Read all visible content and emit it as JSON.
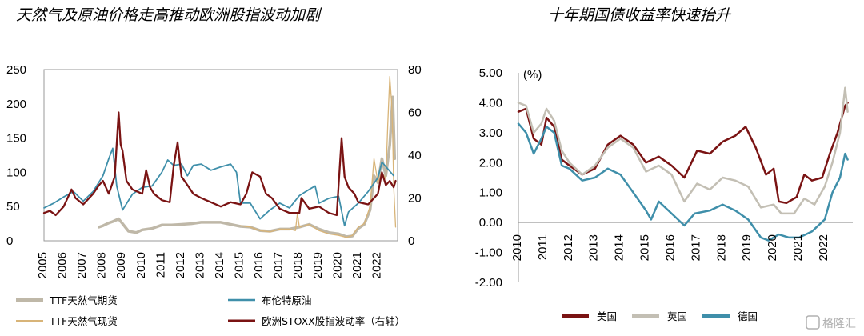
{
  "watermark": "格隆汇",
  "chart_data": [
    {
      "type": "line",
      "title": "天然气及原油价格走高推动欧洲股指波动加剧",
      "x_ticks": [
        "2005",
        "2006",
        "2007",
        "2008",
        "2009",
        "2010",
        "2011",
        "2012",
        "2013",
        "2014",
        "2015",
        "2016",
        "2017",
        "2018",
        "2019",
        "2020",
        "2021",
        "2022"
      ],
      "y_left_ticks": [
        "0",
        "50",
        "100",
        "150",
        "200",
        "250"
      ],
      "y_left_range": [
        0,
        250
      ],
      "y_right_ticks": [
        "0",
        "20",
        "40",
        "60",
        "80"
      ],
      "y_right_range": [
        0,
        80
      ],
      "series": [
        {
          "name": "TTF天然气期货",
          "axis": "left",
          "color": "#bfb8a8",
          "width": 3.5,
          "x": [
            2007.8,
            2008.0,
            2008.3,
            2008.5,
            2008.8,
            2009.0,
            2009.3,
            2009.7,
            2010.0,
            2010.5,
            2011.0,
            2011.5,
            2012.0,
            2012.5,
            2013.0,
            2013.5,
            2014.0,
            2014.5,
            2015.0,
            2015.5,
            2016.0,
            2016.5,
            2017.0,
            2017.5,
            2018.0,
            2018.5,
            2019.0,
            2019.5,
            2020.0,
            2020.4,
            2020.7,
            2021.0,
            2021.3,
            2021.6,
            2021.8,
            2022.0,
            2022.2,
            2022.4,
            2022.6,
            2022.75,
            2022.85
          ],
          "values": [
            20,
            22,
            26,
            28,
            32,
            25,
            14,
            12,
            16,
            18,
            23,
            23,
            24,
            25,
            27,
            27,
            27,
            24,
            21,
            20,
            15,
            14,
            17,
            17,
            20,
            24,
            17,
            12,
            10,
            6,
            7,
            18,
            24,
            45,
            95,
            85,
            120,
            95,
            140,
            210,
            120
          ]
        },
        {
          "name": "TTF天然气现货",
          "axis": "left",
          "color": "#d8b478",
          "width": 1.3,
          "x": [
            2015.0,
            2015.5,
            2016.0,
            2016.5,
            2017.0,
            2017.5,
            2017.8,
            2017.9,
            2018.0,
            2018.5,
            2019.0,
            2019.5,
            2020.0,
            2020.4,
            2020.7,
            2021.0,
            2021.3,
            2021.6,
            2021.8,
            2022.0,
            2022.2,
            2022.4,
            2022.5,
            2022.6,
            2022.7,
            2022.75,
            2022.8,
            2022.9
          ],
          "values": [
            22,
            20,
            15,
            13,
            17,
            17,
            15,
            40,
            20,
            24,
            15,
            10,
            8,
            5,
            8,
            20,
            25,
            50,
            120,
            85,
            100,
            90,
            170,
            240,
            200,
            150,
            80,
            20
          ]
        },
        {
          "name": "布伦特原油",
          "axis": "left",
          "color": "#3f8faa",
          "width": 1.8,
          "x": [
            2005.0,
            2005.5,
            2006.0,
            2006.5,
            2007.0,
            2007.5,
            2008.0,
            2008.3,
            2008.5,
            2008.7,
            2009.0,
            2009.5,
            2010.0,
            2010.5,
            2011.0,
            2011.3,
            2011.6,
            2012.0,
            2012.3,
            2012.6,
            2013.0,
            2013.5,
            2014.0,
            2014.5,
            2014.8,
            2015.0,
            2015.5,
            2016.0,
            2016.5,
            2017.0,
            2017.5,
            2018.0,
            2018.5,
            2018.8,
            2019.0,
            2019.5,
            2020.0,
            2020.3,
            2020.5,
            2021.0,
            2021.5,
            2022.0,
            2022.2,
            2022.5,
            2022.8
          ],
          "values": [
            48,
            55,
            64,
            72,
            58,
            72,
            95,
            120,
            135,
            80,
            45,
            68,
            78,
            80,
            100,
            118,
            110,
            112,
            95,
            110,
            112,
            103,
            108,
            112,
            100,
            55,
            55,
            32,
            45,
            55,
            48,
            66,
            75,
            80,
            55,
            62,
            65,
            22,
            42,
            55,
            72,
            92,
            115,
            105,
            95
          ]
        },
        {
          "name": "欧洲STOXX股指波动率（右轴）",
          "axis": "right",
          "color": "#7a1313",
          "width": 2.3,
          "x": [
            2005.0,
            2005.3,
            2005.6,
            2006.0,
            2006.4,
            2006.6,
            2007.0,
            2007.5,
            2007.8,
            2008.0,
            2008.3,
            2008.6,
            2008.8,
            2008.9,
            2009.0,
            2009.2,
            2009.5,
            2010.0,
            2010.2,
            2010.4,
            2010.6,
            2011.0,
            2011.4,
            2011.6,
            2011.8,
            2012.0,
            2012.3,
            2012.6,
            2013.0,
            2013.5,
            2014.0,
            2014.5,
            2015.0,
            2015.3,
            2015.6,
            2016.0,
            2016.3,
            2016.6,
            2017.0,
            2017.5,
            2018.0,
            2018.1,
            2018.5,
            2019.0,
            2019.5,
            2019.9,
            2020.15,
            2020.3,
            2020.5,
            2020.8,
            2021.0,
            2021.5,
            2022.0,
            2022.2,
            2022.4,
            2022.6,
            2022.8,
            2022.9
          ],
          "values": [
            13,
            14,
            12,
            16,
            24,
            20,
            17,
            22,
            26,
            28,
            22,
            30,
            60,
            45,
            42,
            28,
            24,
            22,
            33,
            25,
            22,
            19,
            18,
            35,
            46,
            30,
            26,
            22,
            20,
            18,
            16,
            18,
            17,
            22,
            32,
            30,
            22,
            20,
            15,
            13,
            13,
            20,
            15,
            16,
            13,
            12,
            48,
            30,
            25,
            22,
            18,
            17,
            22,
            32,
            26,
            28,
            25,
            28
          ]
        }
      ]
    },
    {
      "type": "line",
      "title": "十年期国债收益率快速抬升",
      "unit_label": "(%)",
      "x_ticks": [
        "2010",
        "2011",
        "2012",
        "2013",
        "2014",
        "2015",
        "2016",
        "2017",
        "2018",
        "2019",
        "2020",
        "2021",
        "2022"
      ],
      "y_ticks": [
        "5.00",
        "4.00",
        "3.00",
        "2.00",
        "1.00",
        "0.00",
        "-1.00",
        "-2.00"
      ],
      "y_range": [
        -2,
        5
      ],
      "series": [
        {
          "name": "美国",
          "color": "#7a1313",
          "width": 2.5,
          "x": [
            2010.0,
            2010.3,
            2010.6,
            2010.9,
            2011.1,
            2011.4,
            2011.7,
            2012.0,
            2012.5,
            2013.0,
            2013.5,
            2014.0,
            2014.5,
            2015.0,
            2015.5,
            2016.0,
            2016.5,
            2017.0,
            2017.5,
            2018.0,
            2018.5,
            2018.9,
            2019.3,
            2019.7,
            2020.0,
            2020.2,
            2020.5,
            2020.9,
            2021.2,
            2021.5,
            2021.9,
            2022.2,
            2022.5,
            2022.8,
            2022.9
          ],
          "values": [
            3.7,
            3.8,
            2.8,
            2.6,
            3.5,
            3.2,
            2.1,
            1.9,
            1.6,
            1.8,
            2.6,
            2.9,
            2.6,
            2.0,
            2.2,
            1.9,
            1.5,
            2.4,
            2.3,
            2.7,
            2.9,
            3.2,
            2.5,
            1.6,
            1.8,
            0.7,
            0.65,
            0.85,
            1.6,
            1.4,
            1.5,
            2.3,
            3.0,
            3.9,
            4.0
          ]
        },
        {
          "name": "英国",
          "color": "#c3bfb4",
          "width": 2.5,
          "x": [
            2010.0,
            2010.3,
            2010.6,
            2010.9,
            2011.1,
            2011.4,
            2011.7,
            2012.0,
            2012.5,
            2013.0,
            2013.5,
            2014.0,
            2014.5,
            2015.0,
            2015.5,
            2016.0,
            2016.5,
            2017.0,
            2017.5,
            2018.0,
            2018.5,
            2019.0,
            2019.5,
            2020.0,
            2020.3,
            2020.8,
            2021.2,
            2021.6,
            2022.0,
            2022.3,
            2022.6,
            2022.8,
            2022.9
          ],
          "values": [
            4.0,
            3.9,
            3.0,
            3.3,
            3.8,
            3.4,
            2.4,
            2.0,
            1.6,
            1.9,
            2.5,
            2.8,
            2.5,
            1.7,
            1.9,
            1.6,
            0.7,
            1.3,
            1.1,
            1.5,
            1.4,
            1.2,
            0.5,
            0.6,
            0.3,
            0.3,
            0.8,
            0.6,
            1.2,
            2.0,
            3.0,
            4.5,
            3.7
          ]
        },
        {
          "name": "德国",
          "color": "#3f8faa",
          "width": 2.5,
          "x": [
            2010.0,
            2010.3,
            2010.6,
            2010.9,
            2011.1,
            2011.4,
            2011.7,
            2012.0,
            2012.5,
            2013.0,
            2013.5,
            2014.0,
            2014.5,
            2015.0,
            2015.2,
            2015.5,
            2016.0,
            2016.5,
            2016.9,
            2017.5,
            2018.0,
            2018.5,
            2019.0,
            2019.5,
            2019.8,
            2020.2,
            2020.6,
            2021.0,
            2021.5,
            2022.0,
            2022.3,
            2022.6,
            2022.8,
            2022.9
          ],
          "values": [
            3.3,
            3.0,
            2.3,
            2.8,
            3.2,
            3.0,
            1.9,
            1.8,
            1.4,
            1.5,
            1.8,
            1.6,
            1.0,
            0.4,
            0.1,
            0.7,
            0.3,
            -0.1,
            0.3,
            0.4,
            0.6,
            0.4,
            0.1,
            -0.5,
            -0.6,
            -0.4,
            -0.5,
            -0.5,
            -0.3,
            0.1,
            1.0,
            1.5,
            2.3,
            2.1
          ]
        }
      ]
    }
  ]
}
